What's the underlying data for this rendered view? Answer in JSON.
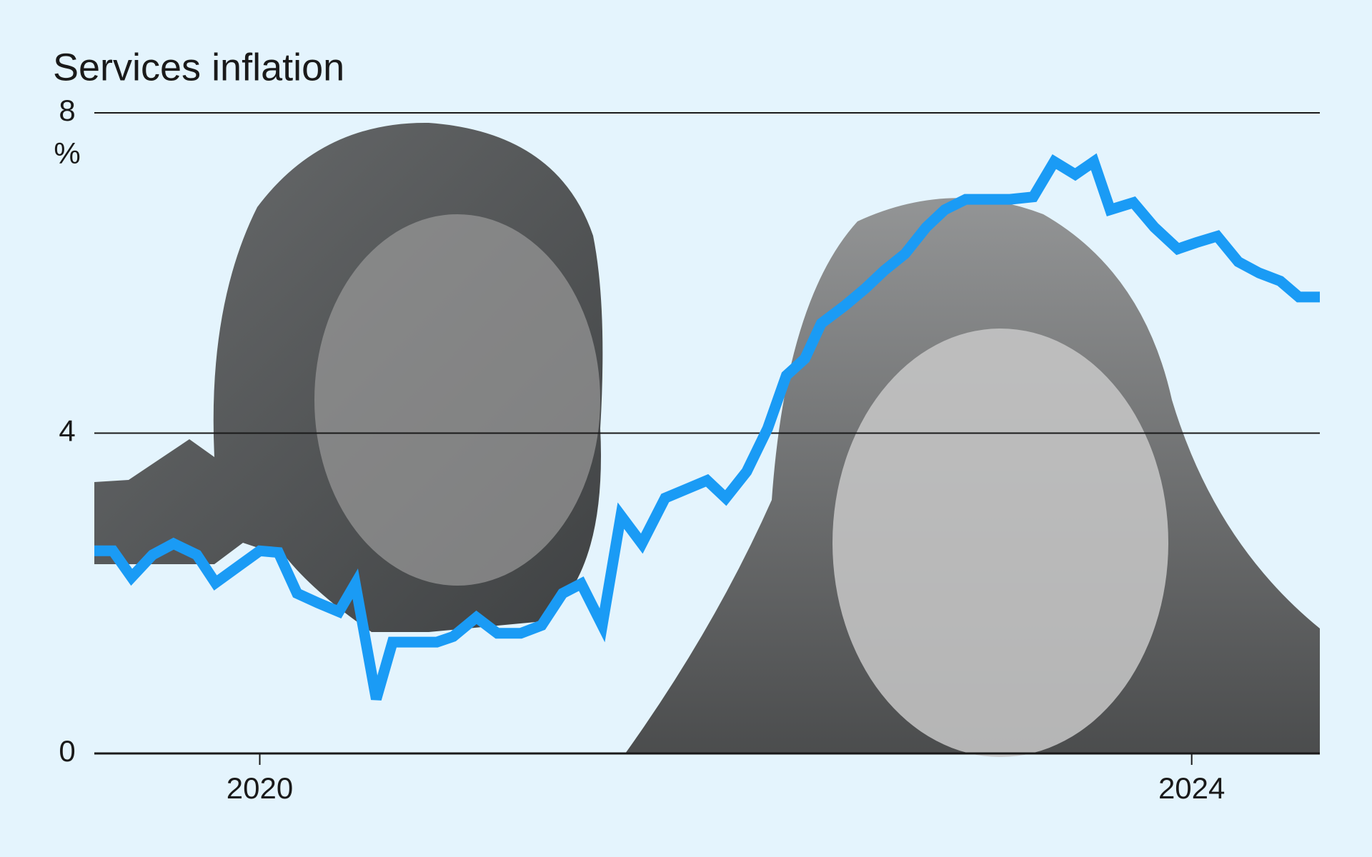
{
  "chart_data": {
    "type": "line",
    "title": "Services inflation",
    "y_unit": "%",
    "x": [
      2019.29,
      2019.37,
      2019.45,
      2019.54,
      2019.63,
      2019.73,
      2019.81,
      2019.91,
      2020.0,
      2020.08,
      2020.16,
      2020.25,
      2020.34,
      2020.41,
      2020.5,
      2020.57,
      2020.67,
      2020.76,
      2020.83,
      2020.93,
      2021.02,
      2021.12,
      2021.21,
      2021.3,
      2021.38,
      2021.47,
      2021.55,
      2021.64,
      2021.74,
      2021.83,
      2021.92,
      2022.0,
      2022.09,
      2022.18,
      2022.26,
      2022.34,
      2022.41,
      2022.51,
      2022.6,
      2022.68,
      2022.77,
      2022.86,
      2022.94,
      2023.03,
      2023.13,
      2023.22,
      2023.32,
      2023.41,
      2023.5,
      2023.58,
      2023.65,
      2023.75,
      2023.84,
      2023.94,
      2024.02,
      2024.11,
      2024.2,
      2024.29,
      2024.38,
      2024.46,
      2024.55
    ],
    "series": [
      {
        "name": "Services inflation",
        "color": "#1a9bf5",
        "values": [
          2.53,
          2.53,
          2.2,
          2.48,
          2.62,
          2.48,
          2.13,
          2.34,
          2.53,
          2.51,
          2.0,
          1.88,
          1.77,
          2.12,
          0.68,
          1.39,
          1.39,
          1.39,
          1.46,
          1.7,
          1.5,
          1.5,
          1.6,
          2.0,
          2.12,
          1.6,
          2.97,
          2.62,
          3.19,
          3.3,
          3.41,
          3.19,
          3.52,
          4.06,
          4.72,
          4.93,
          5.37,
          5.59,
          5.81,
          6.03,
          6.24,
          6.57,
          6.79,
          6.92,
          6.92,
          6.92,
          6.95,
          7.39,
          7.23,
          7.39,
          6.79,
          6.88,
          6.57,
          6.3,
          6.38,
          6.46,
          6.14,
          6.0,
          5.9,
          5.7,
          5.7
        ]
      }
    ],
    "xlim": [
      2019.29,
      2024.55
    ],
    "xticks": [
      2020,
      2024
    ],
    "ylim": [
      0,
      8
    ],
    "yticks": [
      0,
      4,
      8
    ],
    "grid": true
  }
}
